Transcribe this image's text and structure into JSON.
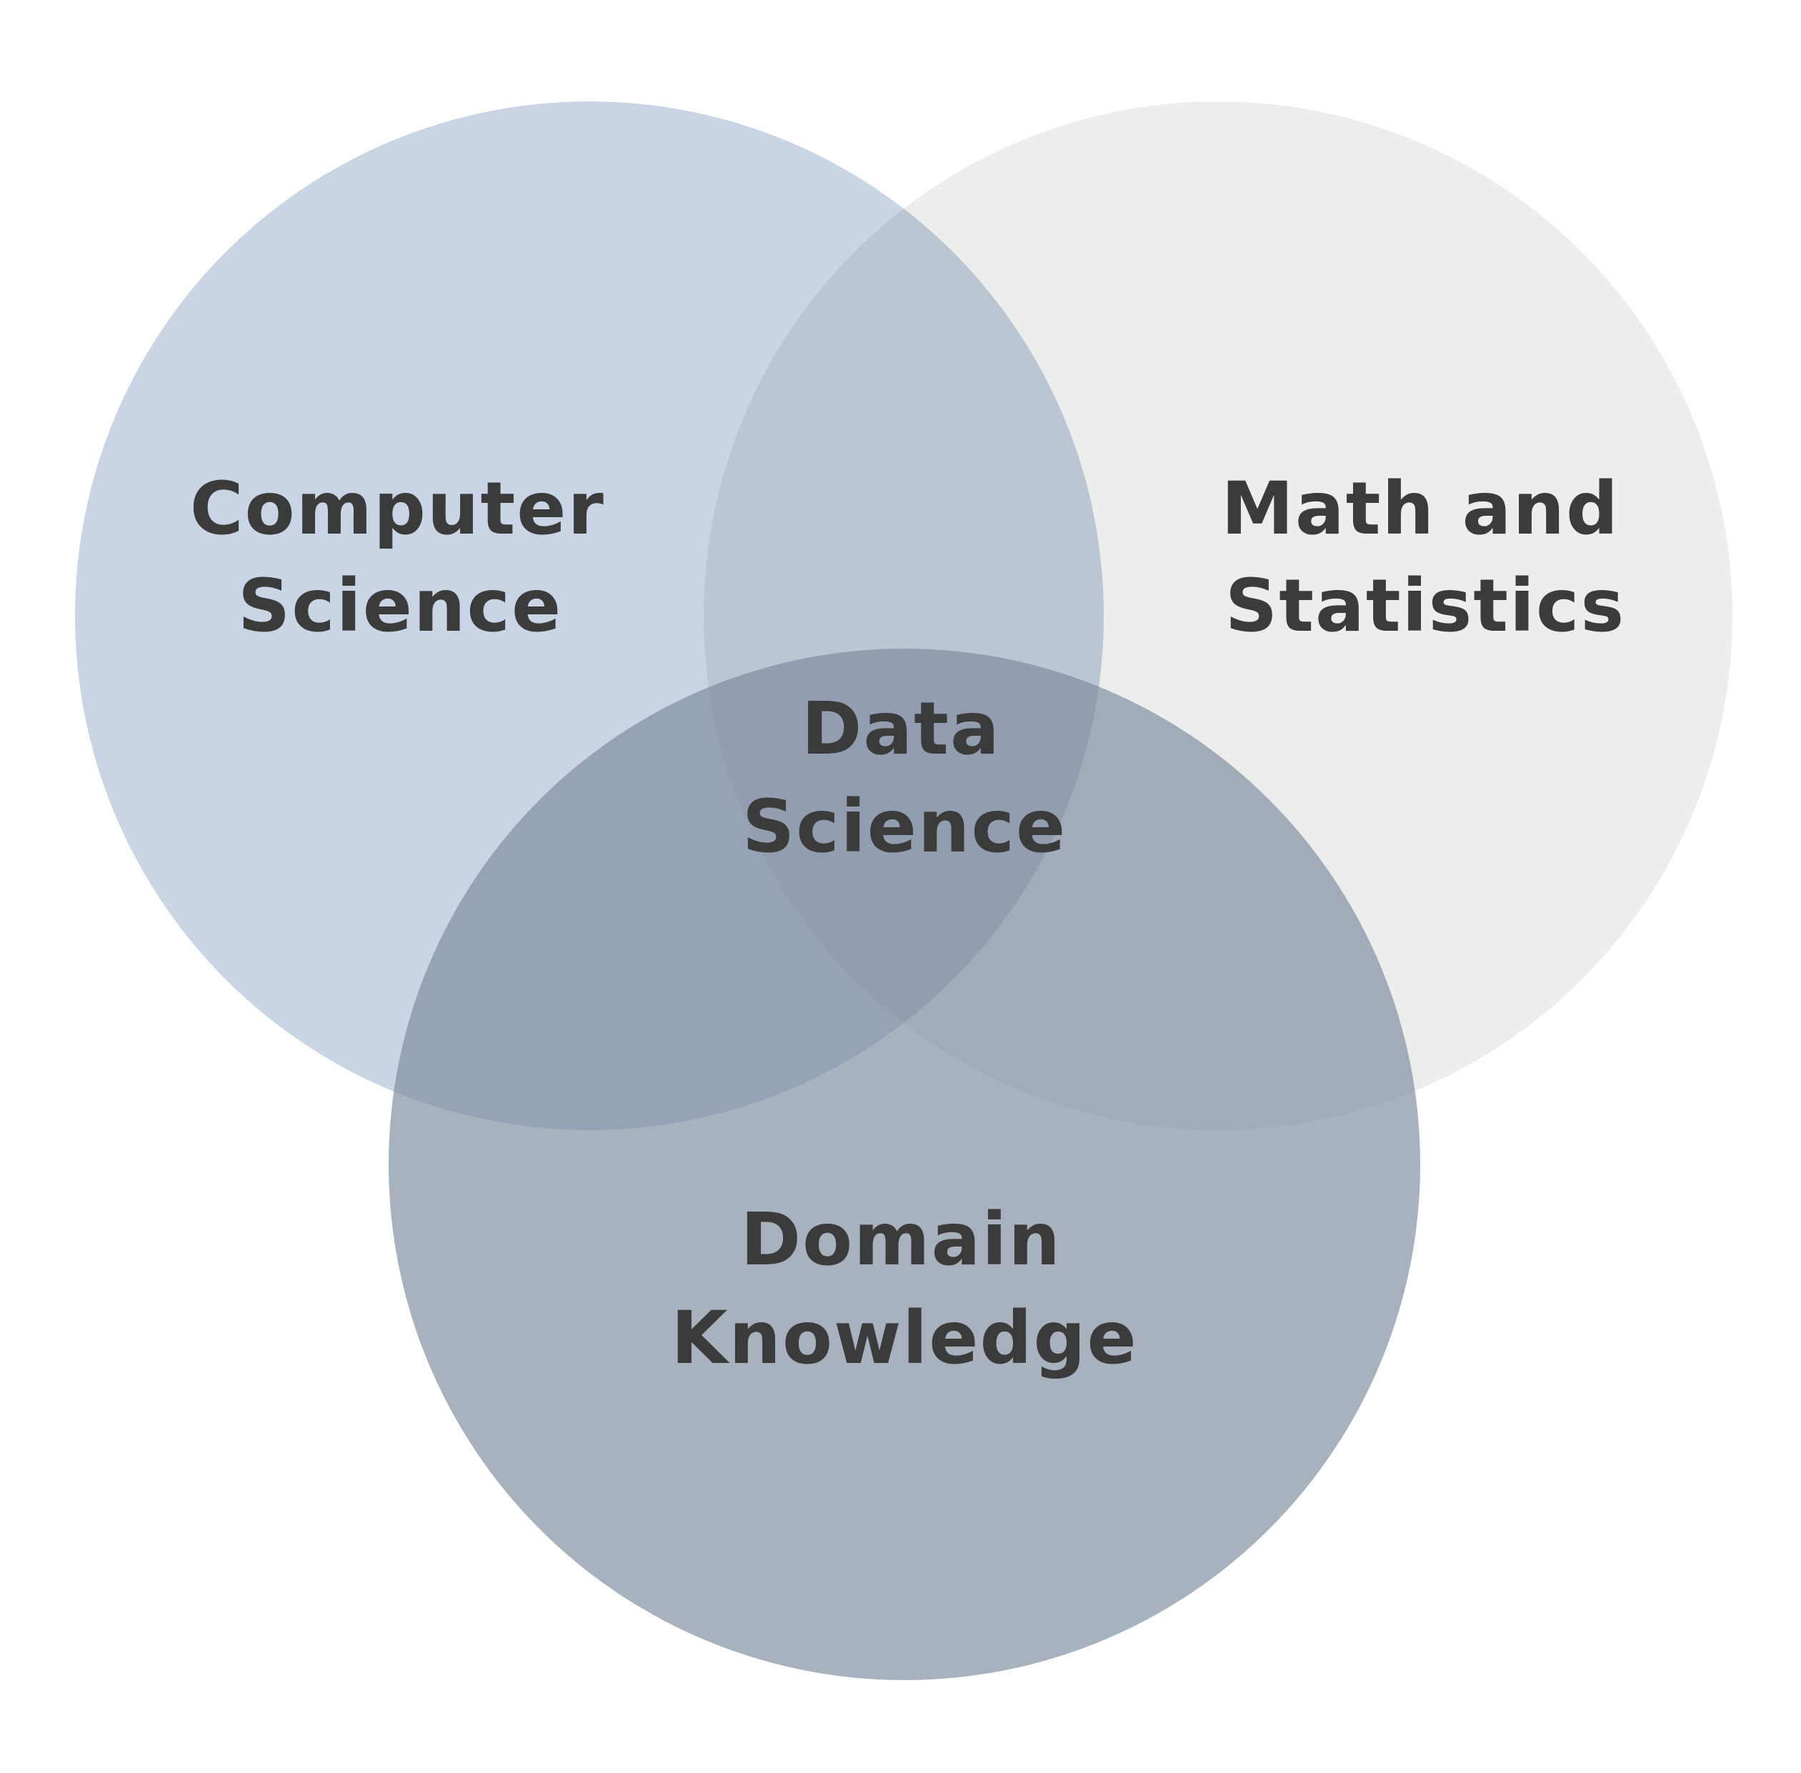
{
  "diagram": {
    "type": "venn",
    "sets": [
      {
        "id": "computer-science",
        "label_lines": [
          "Computer",
          "Science"
        ],
        "color": "#c9d5e5"
      },
      {
        "id": "math-statistics",
        "label_lines": [
          "Math and",
          "Statistics"
        ],
        "color": "#ededeb"
      },
      {
        "id": "domain-knowledge",
        "label_lines": [
          "Domain",
          "Knowledge"
        ],
        "color": "#8793a6"
      }
    ],
    "intersection": {
      "id": "data-science",
      "label_lines": [
        "Data",
        "Science"
      ]
    },
    "colors": {
      "background": "#ffffff",
      "text": "#3b3b3b"
    }
  }
}
